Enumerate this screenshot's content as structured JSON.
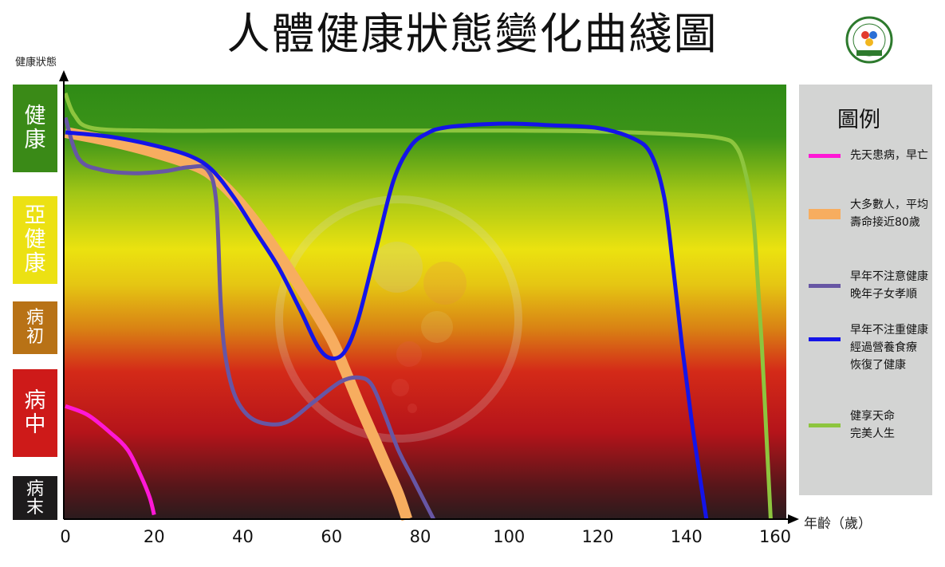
{
  "title": "人體健康狀態變化曲綫圖",
  "ylabel": "健康狀態",
  "xunit": "年齡（歲）",
  "status_labels": [
    {
      "text": "健康",
      "color": "#3a8a17"
    },
    {
      "text": "亞健康",
      "color": "#ece113"
    },
    {
      "text": "病初",
      "color": "#b87216"
    },
    {
      "text": "病中",
      "color": "#ce1a19"
    },
    {
      "text": "病末",
      "color": "#1d1b1c"
    }
  ],
  "legend_title": "圖例",
  "chart_data": {
    "type": "line",
    "title": "人體健康狀態變化曲綫圖",
    "xlabel": "年齡（歲）",
    "ylabel": "健康狀態",
    "xlim": [
      0,
      160
    ],
    "ylim": [
      0,
      5
    ],
    "x_ticks": [
      0,
      20,
      40,
      60,
      80,
      100,
      120,
      140,
      160
    ],
    "y_categories": [
      "病末",
      "病中",
      "病初",
      "亞健康",
      "健康"
    ],
    "legend_position": "right",
    "series": [
      {
        "name": "先天患病，早亡",
        "color": "#ff18d6",
        "width": 5,
        "x": [
          0,
          5,
          10,
          14,
          17,
          19,
          20
        ],
        "y": [
          1.3,
          1.2,
          1.0,
          0.8,
          0.5,
          0.25,
          0.05
        ]
      },
      {
        "name": "大多數人，平均壽命接近80歲",
        "color": "#f7ad5f",
        "width": 14,
        "x": [
          0,
          10,
          20,
          30,
          35,
          40,
          45,
          50,
          55,
          60,
          63,
          66,
          69,
          72,
          75,
          77
        ],
        "y": [
          4.45,
          4.35,
          4.22,
          4.05,
          3.87,
          3.6,
          3.27,
          2.9,
          2.5,
          2.07,
          1.72,
          1.35,
          1.0,
          0.65,
          0.3,
          0.0
        ]
      },
      {
        "name": "早年不注意健康晚年子女孝順",
        "color": "#6756a4",
        "width": 5,
        "x": [
          0,
          3,
          8,
          15,
          22,
          28,
          32,
          34,
          35,
          36,
          38,
          41,
          45,
          50,
          56,
          62,
          66,
          69,
          72,
          75,
          78,
          81,
          83
        ],
        "y": [
          4.62,
          4.15,
          4.02,
          3.98,
          4.0,
          4.05,
          4.02,
          3.65,
          2.5,
          1.9,
          1.45,
          1.2,
          1.1,
          1.12,
          1.35,
          1.58,
          1.63,
          1.55,
          1.2,
          0.8,
          0.5,
          0.2,
          0.0
        ]
      },
      {
        "name": "早年不注重健康經過營養食療恢復了健康",
        "color": "#1414e8",
        "width": 5,
        "x": [
          0,
          10,
          20,
          28,
          33,
          38,
          43,
          48,
          53,
          57,
          60,
          63,
          66,
          70,
          74,
          78,
          82,
          85,
          90,
          100,
          110,
          120,
          128,
          132,
          135,
          137,
          139,
          141,
          143,
          144.5
        ],
        "y": [
          4.45,
          4.4,
          4.3,
          4.18,
          4.02,
          3.7,
          3.3,
          2.9,
          2.4,
          1.98,
          1.85,
          1.93,
          2.3,
          3.1,
          3.9,
          4.3,
          4.45,
          4.5,
          4.53,
          4.55,
          4.53,
          4.5,
          4.38,
          4.2,
          3.7,
          2.9,
          2.0,
          1.2,
          0.5,
          0.0
        ]
      },
      {
        "name": "健享天命完美人生",
        "color": "#8dc53e",
        "width": 5,
        "x": [
          0,
          2,
          6,
          20,
          40,
          60,
          80,
          100,
          120,
          140,
          148,
          151,
          153,
          155,
          156,
          157,
          158,
          159
        ],
        "y": [
          4.9,
          4.65,
          4.5,
          4.47,
          4.47,
          4.47,
          4.47,
          4.47,
          4.46,
          4.42,
          4.38,
          4.3,
          4.05,
          3.5,
          2.8,
          2.0,
          1.0,
          0.0
        ]
      }
    ],
    "legend": [
      {
        "label": "先天患病，早亡",
        "color": "#ff18d6"
      },
      {
        "label": "大多數人，平均\n壽命接近80歲",
        "color": "#f7ad5f"
      },
      {
        "label": "早年不注意健康\n晚年子女孝順",
        "color": "#6756a4"
      },
      {
        "label": "早年不注重健康\n經過營養食療\n恢復了健康",
        "color": "#1414e8"
      },
      {
        "label": "健享天命\n完美人生",
        "color": "#8dc53e"
      }
    ]
  }
}
